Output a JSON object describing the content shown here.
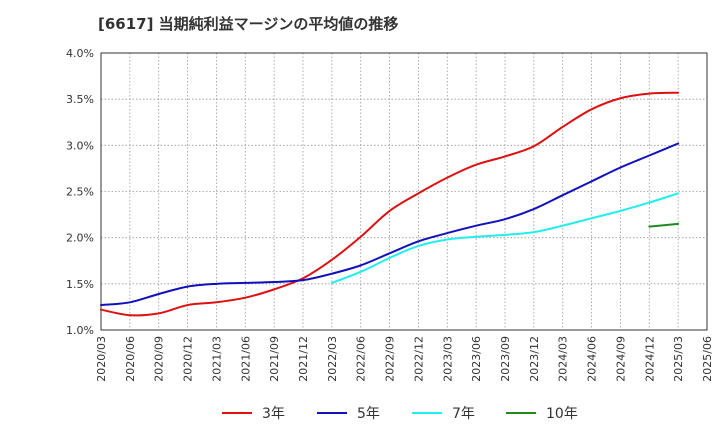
{
  "chart_data": {
    "type": "line",
    "title": "[6617]  当期純利益マージンの平均値の推移",
    "xlabel": "",
    "ylabel": "",
    "ylim": [
      1.0,
      4.0
    ],
    "y_ticks": [
      "1.0%",
      "1.5%",
      "2.0%",
      "2.5%",
      "3.0%",
      "3.5%",
      "4.0%"
    ],
    "x_ticks": [
      "2020/03",
      "2020/06",
      "2020/09",
      "2020/12",
      "2021/03",
      "2021/06",
      "2021/09",
      "2021/12",
      "2022/03",
      "2022/06",
      "2022/09",
      "2022/12",
      "2023/03",
      "2023/06",
      "2023/09",
      "2023/12",
      "2024/03",
      "2024/06",
      "2024/09",
      "2024/12",
      "2025/03",
      "2025/06"
    ],
    "grid": true,
    "legend_position": "bottom",
    "series": [
      {
        "name": "3年",
        "color": "#dd1111",
        "x": [
          "2020/03",
          "2020/06",
          "2020/09",
          "2020/12",
          "2021/03",
          "2021/06",
          "2021/09",
          "2021/12",
          "2022/03",
          "2022/06",
          "2022/09",
          "2022/12",
          "2023/03",
          "2023/06",
          "2023/09",
          "2023/12",
          "2024/03",
          "2024/06",
          "2024/09",
          "2024/12",
          "2025/03"
        ],
        "values": [
          1.22,
          1.16,
          1.18,
          1.27,
          1.3,
          1.35,
          1.44,
          1.56,
          1.76,
          2.01,
          2.29,
          2.48,
          2.65,
          2.79,
          2.88,
          2.99,
          3.2,
          3.39,
          3.51,
          3.56,
          3.57
        ]
      },
      {
        "name": "5年",
        "color": "#1111bb",
        "x": [
          "2020/03",
          "2020/06",
          "2020/09",
          "2020/12",
          "2021/03",
          "2021/06",
          "2021/09",
          "2021/12",
          "2022/03",
          "2022/06",
          "2022/09",
          "2022/12",
          "2023/03",
          "2023/06",
          "2023/09",
          "2023/12",
          "2024/03",
          "2024/06",
          "2024/09",
          "2024/12",
          "2025/03"
        ],
        "values": [
          1.27,
          1.3,
          1.39,
          1.47,
          1.5,
          1.51,
          1.52,
          1.54,
          1.61,
          1.7,
          1.83,
          1.96,
          2.05,
          2.13,
          2.2,
          2.31,
          2.46,
          2.61,
          2.76,
          2.89,
          3.02
        ]
      },
      {
        "name": "7年",
        "color": "#22eeee",
        "x": [
          "2022/03",
          "2022/06",
          "2022/09",
          "2022/12",
          "2023/03",
          "2023/06",
          "2023/09",
          "2023/12",
          "2024/03",
          "2024/06",
          "2024/09",
          "2024/12",
          "2025/03"
        ],
        "values": [
          1.51,
          1.63,
          1.78,
          1.91,
          1.98,
          2.01,
          2.03,
          2.06,
          2.13,
          2.21,
          2.29,
          2.38,
          2.48
        ]
      },
      {
        "name": "10年",
        "color": "#228822",
        "x": [
          "2024/12",
          "2025/03"
        ],
        "values": [
          2.12,
          2.15
        ]
      }
    ]
  }
}
